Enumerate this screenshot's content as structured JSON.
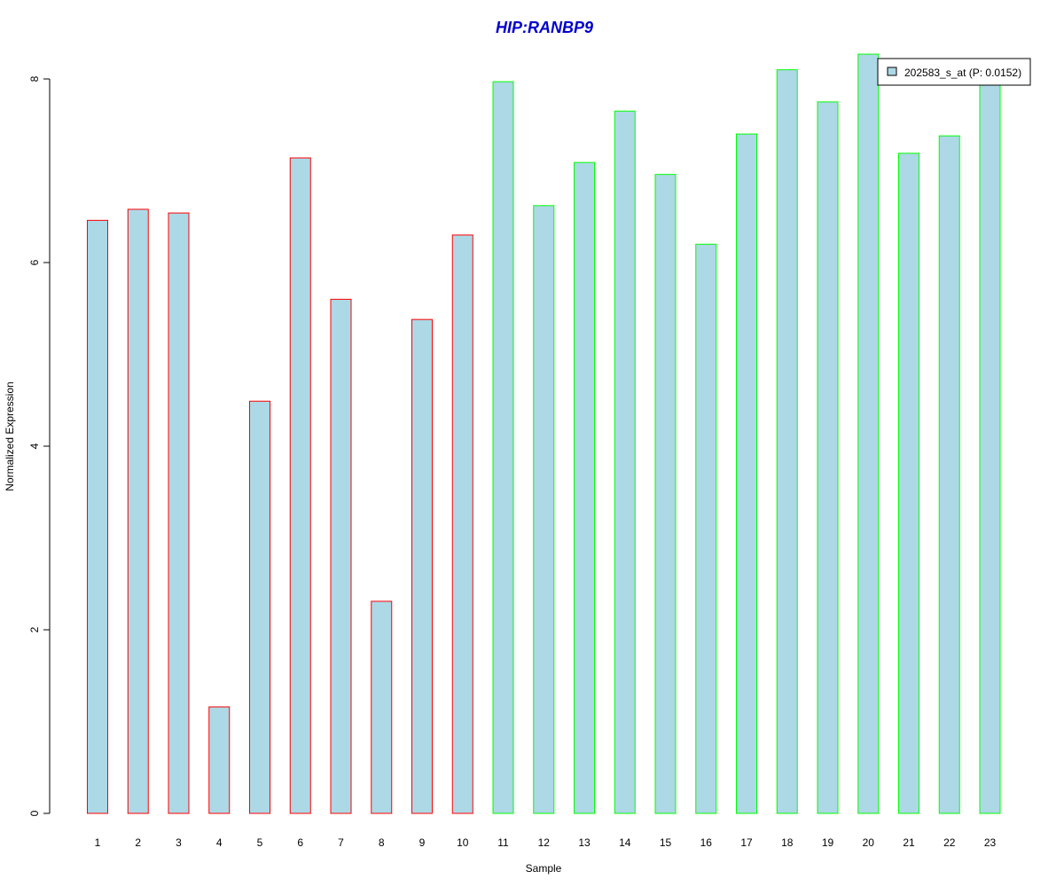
{
  "chart_data": {
    "type": "bar",
    "title": "HIP:RANBP9",
    "xlabel": "Sample",
    "ylabel": "Normalized Expression",
    "categories": [
      "1",
      "2",
      "3",
      "4",
      "5",
      "6",
      "7",
      "8",
      "9",
      "10",
      "11",
      "12",
      "13",
      "14",
      "15",
      "16",
      "17",
      "18",
      "19",
      "20",
      "21",
      "22",
      "23"
    ],
    "series": [
      {
        "name": "202583_s_at (P: 0.0152)",
        "values": [
          6.46,
          6.58,
          6.54,
          1.16,
          4.49,
          7.14,
          5.6,
          2.31,
          5.38,
          6.3,
          7.97,
          6.62,
          7.09,
          7.65,
          6.96,
          6.2,
          7.4,
          8.1,
          7.75,
          8.27,
          7.19,
          7.38,
          7.97
        ]
      }
    ],
    "group_outline": [
      "red",
      "red",
      "red",
      "red",
      "red",
      "red",
      "red",
      "red",
      "red",
      "red",
      "green",
      "green",
      "green",
      "green",
      "green",
      "green",
      "green",
      "green",
      "green",
      "green",
      "green",
      "green",
      "green"
    ],
    "yticks": [
      0,
      2,
      4,
      6,
      8
    ],
    "ylim": [
      0,
      8.4
    ],
    "grid": false,
    "legend_position": "top-right",
    "colors": {
      "bar_fill": "#add8e6",
      "outline_red": "#ff0000",
      "outline_green": "#00ff00",
      "title": "#0000cd"
    }
  }
}
